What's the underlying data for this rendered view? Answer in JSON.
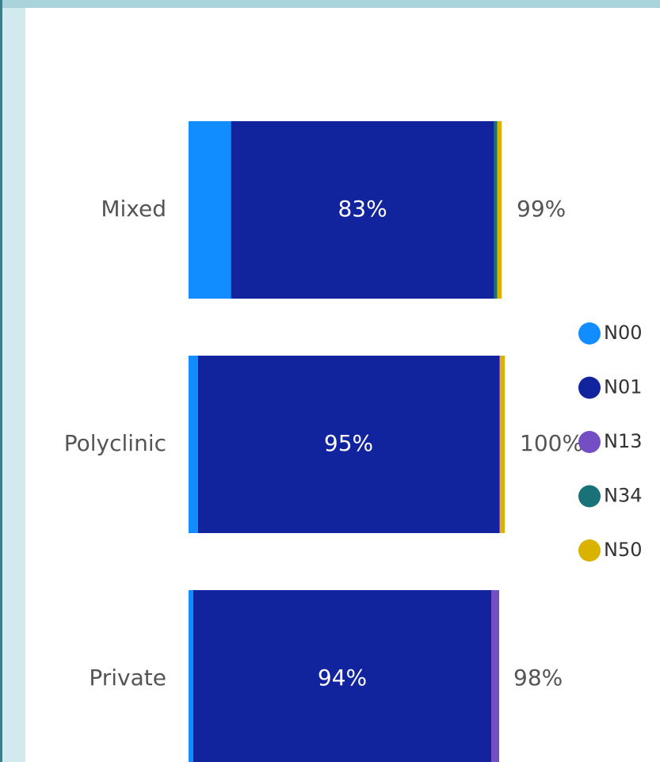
{
  "chart_data": {
    "type": "stacked_bar_horizontal",
    "categories": [
      "Mixed",
      "Polyclinic",
      "Private"
    ],
    "series": [
      {
        "name": "N00",
        "color": "#118dff",
        "values": [
          13.4,
          3,
          1.5
        ]
      },
      {
        "name": "N01",
        "color": "#12239e",
        "values": [
          83,
          95,
          94
        ],
        "value_labels": [
          "83%",
          "95%",
          "94%"
        ]
      },
      {
        "name": "N13",
        "color": "#744ec2",
        "values": [
          0,
          0.3,
          2.5
        ]
      },
      {
        "name": "N34",
        "color": "#197278",
        "values": [
          1,
          0,
          0
        ]
      },
      {
        "name": "N50",
        "color": "#d9b300",
        "values": [
          1.4,
          1.5,
          0
        ]
      }
    ],
    "totals": {
      "values": [
        99,
        100,
        98
      ],
      "value_labels": [
        "99%",
        "100%",
        "98%"
      ]
    },
    "xlim": [
      0,
      100
    ],
    "legend": "right"
  }
}
